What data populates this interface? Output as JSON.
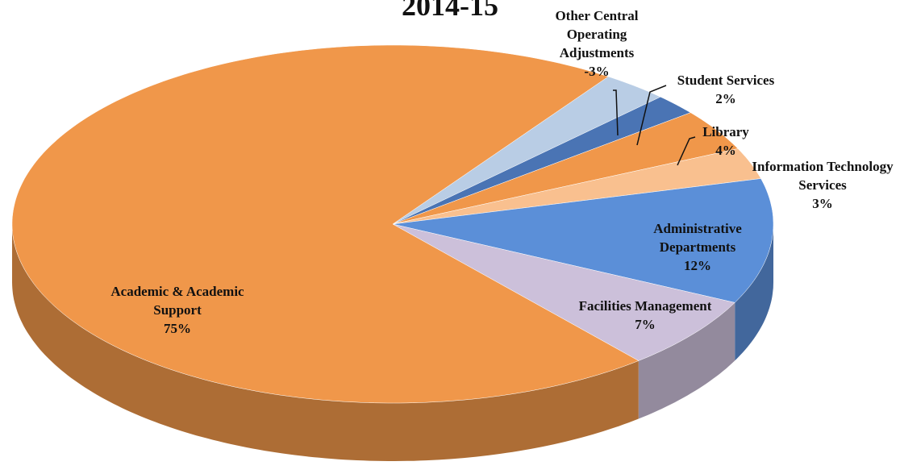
{
  "chart_data": {
    "type": "pie",
    "title": "2014-15",
    "categories": [
      "Other Central Operating Adjustments",
      "Student Services",
      "Library",
      "Information Technology Services",
      "Administrative Departments",
      "Facilities Management",
      "Academic & Academic Support"
    ],
    "values": [
      -3,
      2,
      4,
      3,
      12,
      7,
      75
    ],
    "value_labels": [
      "-3%",
      "2%",
      "4%",
      "3%",
      "12%",
      "7%",
      "75%"
    ],
    "colors": [
      "#b9cde5",
      "#4a74b4",
      "#f0974a",
      "#f9c08f",
      "#5b8fd8",
      "#ccc0da",
      "#f0974a"
    ]
  }
}
